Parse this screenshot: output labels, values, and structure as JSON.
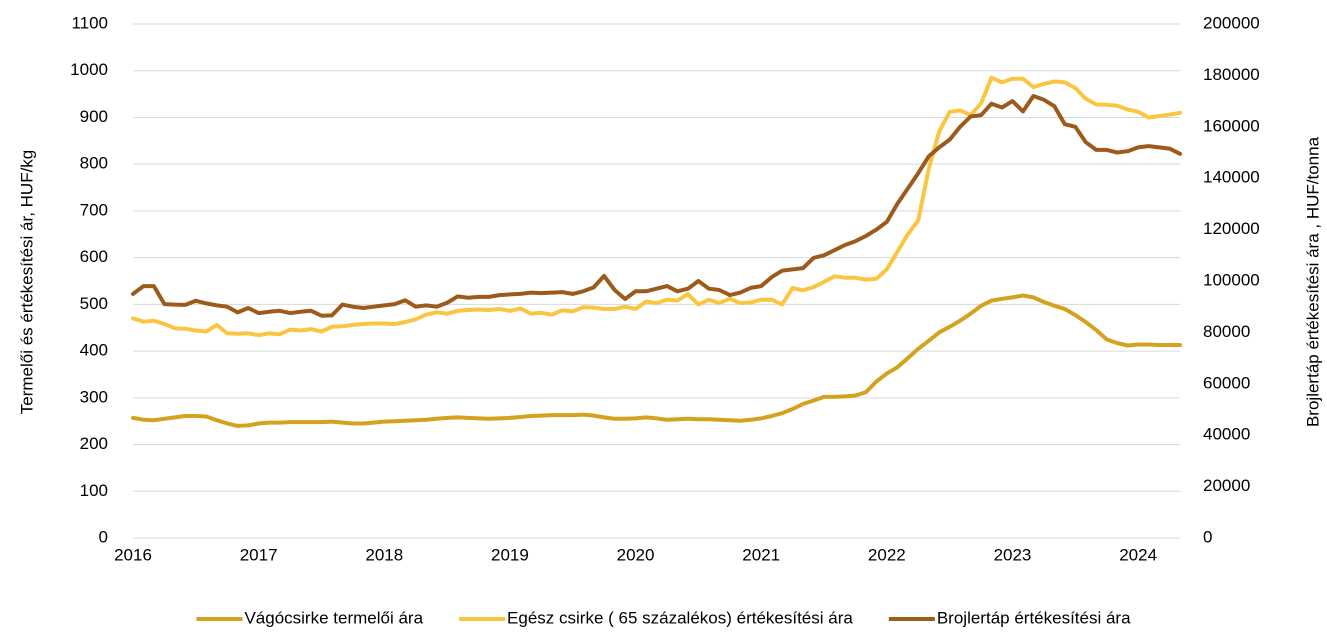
{
  "chart_data": {
    "type": "line",
    "y_label": "Termelői és értékesítési ár, HUF/kg",
    "y2_label": "Brojlertáp értékesítési ára , HUF/tonna",
    "categories": [
      "2016",
      null,
      null,
      null,
      null,
      null,
      null,
      null,
      null,
      null,
      null,
      null,
      "2017",
      null,
      null,
      null,
      null,
      null,
      null,
      null,
      null,
      null,
      null,
      null,
      "2018",
      null,
      null,
      null,
      null,
      null,
      null,
      null,
      null,
      null,
      null,
      null,
      "2019",
      null,
      null,
      null,
      null,
      null,
      null,
      null,
      null,
      null,
      null,
      null,
      "2020",
      null,
      null,
      null,
      null,
      null,
      null,
      null,
      null,
      null,
      null,
      null,
      "2021",
      null,
      null,
      null,
      null,
      null,
      null,
      null,
      null,
      null,
      null,
      null,
      "2022",
      null,
      null,
      null,
      null,
      null,
      null,
      null,
      null,
      null,
      null,
      null,
      "2023",
      null,
      null,
      null,
      null,
      null,
      null,
      null,
      null,
      null,
      null,
      null,
      "2024",
      null,
      null,
      null,
      null
    ],
    "ylim": [
      0,
      1100
    ],
    "yticks": [
      0,
      100,
      200,
      300,
      400,
      500,
      600,
      700,
      800,
      900,
      1000,
      1100
    ],
    "y2lim": [
      0,
      200000
    ],
    "y2ticks": [
      0,
      20000,
      40000,
      60000,
      80000,
      100000,
      120000,
      140000,
      160000,
      180000,
      200000
    ],
    "grid": true,
    "legend": "bottom",
    "series": [
      {
        "name": "Vágócsirke termelői ára",
        "color": "#d4a21f",
        "values": [
          257,
          253,
          252,
          255,
          258,
          261,
          261,
          260,
          252,
          245,
          240,
          241,
          245,
          247,
          247,
          248,
          248,
          248,
          248,
          249,
          247,
          245,
          245,
          247,
          249,
          250,
          251,
          252,
          253,
          255,
          257,
          258,
          257,
          256,
          255,
          256,
          257,
          259,
          261,
          262,
          263,
          263,
          263,
          264,
          262,
          258,
          255,
          255,
          256,
          258,
          256,
          253,
          254,
          255,
          254,
          254,
          253,
          252,
          251,
          253,
          256,
          261,
          267,
          276,
          287,
          294,
          302,
          302,
          303,
          305,
          312,
          335,
          352,
          365,
          385,
          405,
          422,
          440,
          452,
          465,
          480,
          497,
          508,
          512,
          515,
          519,
          515,
          505,
          497,
          490,
          477,
          462,
          445,
          425,
          417,
          412,
          414,
          414,
          413,
          413,
          413
        ]
      },
      {
        "name": "Egész csirke ( 65 százalékos) értékesítési ára",
        "color": "#fac541",
        "values": [
          470,
          463,
          465,
          458,
          449,
          448,
          444,
          442,
          456,
          438,
          437,
          438,
          434,
          438,
          436,
          446,
          444,
          447,
          442,
          452,
          453,
          456,
          458,
          459,
          459,
          458,
          462,
          468,
          478,
          483,
          480,
          486,
          488,
          489,
          488,
          490,
          486,
          491,
          480,
          482,
          478,
          487,
          485,
          494,
          493,
          490,
          490,
          495,
          490,
          506,
          503,
          510,
          508,
          522,
          500,
          510,
          503,
          512,
          503,
          504,
          510,
          510,
          500,
          535,
          530,
          537,
          548,
          560,
          557,
          557,
          553,
          555,
          575,
          612,
          650,
          680,
          790,
          870,
          912,
          915,
          905,
          930,
          985,
          975,
          983,
          983,
          965,
          972,
          977,
          975,
          963,
          940,
          928,
          927,
          925,
          917,
          912,
          900,
          903,
          906,
          910
        ]
      },
      {
        "name": "Brojlertáp értékesítési ára",
        "color": "#9c5a1b",
        "axis": "y2",
        "values": [
          95000,
          98000,
          98000,
          91000,
          90800,
          90700,
          92300,
          91300,
          90500,
          90000,
          87800,
          89500,
          87500,
          88000,
          88400,
          87500,
          88000,
          88400,
          86500,
          86600,
          90800,
          90000,
          89500,
          90000,
          90500,
          91000,
          92500,
          90000,
          90500,
          90000,
          91500,
          94000,
          93500,
          93800,
          93800,
          94500,
          94800,
          95000,
          95500,
          95300,
          95500,
          95700,
          95000,
          96000,
          97500,
          102000,
          96500,
          93000,
          96000,
          96000,
          97000,
          98000,
          96000,
          97000,
          100000,
          97000,
          96500,
          94500,
          95500,
          97300,
          98000,
          101500,
          104000,
          104500,
          105000,
          109000,
          110000,
          112000,
          114000,
          115500,
          117500,
          120000,
          123000,
          130000,
          136000,
          142000,
          148500,
          152000,
          155000,
          160000,
          164000,
          164500,
          169000,
          167500,
          170000,
          166000,
          172000,
          170500,
          168000,
          161000,
          160000,
          154000,
          151000,
          151000,
          150000,
          150500,
          152000,
          152500,
          152000,
          151500,
          149500
        ]
      }
    ]
  }
}
